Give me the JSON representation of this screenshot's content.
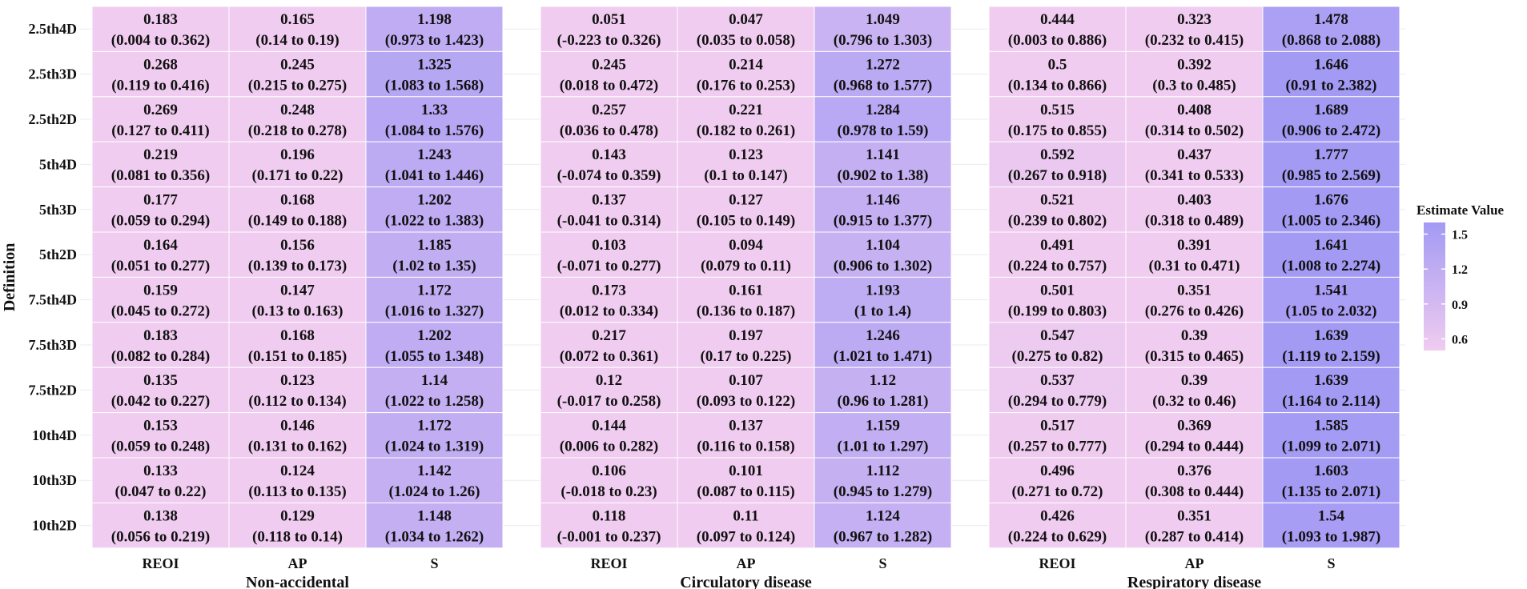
{
  "chart_data": {
    "type": "heatmap",
    "ylabel": "Definition",
    "rows": [
      "2.5th4D",
      "2.5th3D",
      "2.5th2D",
      "5th4D",
      "5th3D",
      "5th2D",
      "7.5th4D",
      "7.5th3D",
      "7.5th2D",
      "10th4D",
      "10th3D",
      "10th2D"
    ],
    "columns": [
      "REOI",
      "AP",
      "S"
    ],
    "legend": {
      "title": "Estimate Value",
      "ticks": [
        "1.5",
        "1.2",
        "0.9",
        "0.6"
      ],
      "tick_values": [
        1.5,
        1.2,
        0.9,
        0.6
      ],
      "range": [
        0.5,
        1.6
      ],
      "low_color": "#f0ccf0",
      "high_color": "#a39af4"
    },
    "panels": [
      {
        "title": "Non-accidental",
        "estimates": [
          [
            0.183,
            0.165,
            1.198
          ],
          [
            0.268,
            0.245,
            1.325
          ],
          [
            0.269,
            0.248,
            1.33
          ],
          [
            0.219,
            0.196,
            1.243
          ],
          [
            0.177,
            0.168,
            1.202
          ],
          [
            0.164,
            0.156,
            1.185
          ],
          [
            0.159,
            0.147,
            1.172
          ],
          [
            0.183,
            0.168,
            1.202
          ],
          [
            0.135,
            0.123,
            1.14
          ],
          [
            0.153,
            0.146,
            1.172
          ],
          [
            0.133,
            0.124,
            1.142
          ],
          [
            0.138,
            0.129,
            1.148
          ]
        ],
        "labels": [
          [
            "0.183",
            "0.165",
            "1.198"
          ],
          [
            "0.268",
            "0.245",
            "1.325"
          ],
          [
            "0.269",
            "0.248",
            "1.33"
          ],
          [
            "0.219",
            "0.196",
            "1.243"
          ],
          [
            "0.177",
            "0.168",
            "1.202"
          ],
          [
            "0.164",
            "0.156",
            "1.185"
          ],
          [
            "0.159",
            "0.147",
            "1.172"
          ],
          [
            "0.183",
            "0.168",
            "1.202"
          ],
          [
            "0.135",
            "0.123",
            "1.14"
          ],
          [
            "0.153",
            "0.146",
            "1.172"
          ],
          [
            "0.133",
            "0.124",
            "1.142"
          ],
          [
            "0.138",
            "0.129",
            "1.148"
          ]
        ],
        "ci": [
          [
            "(0.004 to 0.362)",
            "(0.14 to 0.19)",
            "(0.973 to 1.423)"
          ],
          [
            "(0.119 to 0.416)",
            "(0.215 to 0.275)",
            "(1.083 to 1.568)"
          ],
          [
            "(0.127 to 0.411)",
            "(0.218 to 0.278)",
            "(1.084 to 1.576)"
          ],
          [
            "(0.081 to 0.356)",
            "(0.171 to 0.22)",
            "(1.041 to 1.446)"
          ],
          [
            "(0.059 to 0.294)",
            "(0.149 to 0.188)",
            "(1.022 to 1.383)"
          ],
          [
            "(0.051 to 0.277)",
            "(0.139 to 0.173)",
            "(1.02 to 1.35)"
          ],
          [
            "(0.045 to 0.272)",
            "(0.13 to 0.163)",
            "(1.016 to 1.327)"
          ],
          [
            "(0.082 to 0.284)",
            "(0.151 to 0.185)",
            "(1.055 to 1.348)"
          ],
          [
            "(0.042 to 0.227)",
            "(0.112 to 0.134)",
            "(1.022 to 1.258)"
          ],
          [
            "(0.059 to 0.248)",
            "(0.131 to 0.162)",
            "(1.024 to 1.319)"
          ],
          [
            "(0.047 to 0.22)",
            "(0.113 to 0.135)",
            "(1.024 to 1.26)"
          ],
          [
            "(0.056 to 0.219)",
            "(0.118 to 0.14)",
            "(1.034 to 1.262)"
          ]
        ]
      },
      {
        "title": "Circulatory disease",
        "estimates": [
          [
            0.051,
            0.047,
            1.049
          ],
          [
            0.245,
            0.214,
            1.272
          ],
          [
            0.257,
            0.221,
            1.284
          ],
          [
            0.143,
            0.123,
            1.141
          ],
          [
            0.137,
            0.127,
            1.146
          ],
          [
            0.103,
            0.094,
            1.104
          ],
          [
            0.173,
            0.161,
            1.193
          ],
          [
            0.217,
            0.197,
            1.246
          ],
          [
            0.12,
            0.107,
            1.12
          ],
          [
            0.144,
            0.137,
            1.159
          ],
          [
            0.106,
            0.101,
            1.112
          ],
          [
            0.118,
            0.11,
            1.124
          ]
        ],
        "labels": [
          [
            "0.051",
            "0.047",
            "1.049"
          ],
          [
            "0.245",
            "0.214",
            "1.272"
          ],
          [
            "0.257",
            "0.221",
            "1.284"
          ],
          [
            "0.143",
            "0.123",
            "1.141"
          ],
          [
            "0.137",
            "0.127",
            "1.146"
          ],
          [
            "0.103",
            "0.094",
            "1.104"
          ],
          [
            "0.173",
            "0.161",
            "1.193"
          ],
          [
            "0.217",
            "0.197",
            "1.246"
          ],
          [
            "0.12",
            "0.107",
            "1.12"
          ],
          [
            "0.144",
            "0.137",
            "1.159"
          ],
          [
            "0.106",
            "0.101",
            "1.112"
          ],
          [
            "0.118",
            "0.11",
            "1.124"
          ]
        ],
        "ci": [
          [
            "(-0.223 to 0.326)",
            "(0.035 to 0.058)",
            "(0.796 to 1.303)"
          ],
          [
            "(0.018 to 0.472)",
            "(0.176 to 0.253)",
            "(0.968 to 1.577)"
          ],
          [
            "(0.036 to 0.478)",
            "(0.182 to 0.261)",
            "(0.978 to 1.59)"
          ],
          [
            "(-0.074 to 0.359)",
            "(0.1 to 0.147)",
            "(0.902 to 1.38)"
          ],
          [
            "(-0.041 to 0.314)",
            "(0.105 to 0.149)",
            "(0.915 to 1.377)"
          ],
          [
            "(-0.071 to 0.277)",
            "(0.079 to 0.11)",
            "(0.906 to 1.302)"
          ],
          [
            "(0.012 to 0.334)",
            "(0.136 to 0.187)",
            "(1 to 1.4)"
          ],
          [
            "(0.072 to 0.361)",
            "(0.17 to 0.225)",
            "(1.021 to 1.471)"
          ],
          [
            "(-0.017 to 0.258)",
            "(0.093 to 0.122)",
            "(0.96 to 1.281)"
          ],
          [
            "(0.006 to 0.282)",
            "(0.116 to 0.158)",
            "(1.01 to 1.297)"
          ],
          [
            "(-0.018 to 0.23)",
            "(0.087 to 0.115)",
            "(0.945 to 1.279)"
          ],
          [
            "(-0.001 to 0.237)",
            "(0.097 to 0.124)",
            "(0.967 to 1.282)"
          ]
        ]
      },
      {
        "title": "Respiratory disease",
        "estimates": [
          [
            0.444,
            0.323,
            1.478
          ],
          [
            0.5,
            0.392,
            1.646
          ],
          [
            0.515,
            0.408,
            1.689
          ],
          [
            0.592,
            0.437,
            1.777
          ],
          [
            0.521,
            0.403,
            1.676
          ],
          [
            0.491,
            0.391,
            1.641
          ],
          [
            0.501,
            0.351,
            1.541
          ],
          [
            0.547,
            0.39,
            1.639
          ],
          [
            0.537,
            0.39,
            1.639
          ],
          [
            0.517,
            0.369,
            1.585
          ],
          [
            0.496,
            0.376,
            1.603
          ],
          [
            0.426,
            0.351,
            1.54
          ]
        ],
        "labels": [
          [
            "0.444",
            "0.323",
            "1.478"
          ],
          [
            "0.5",
            "0.392",
            "1.646"
          ],
          [
            "0.515",
            "0.408",
            "1.689"
          ],
          [
            "0.592",
            "0.437",
            "1.777"
          ],
          [
            "0.521",
            "0.403",
            "1.676"
          ],
          [
            "0.491",
            "0.391",
            "1.641"
          ],
          [
            "0.501",
            "0.351",
            "1.541"
          ],
          [
            "0.547",
            "0.39",
            "1.639"
          ],
          [
            "0.537",
            "0.39",
            "1.639"
          ],
          [
            "0.517",
            "0.369",
            "1.585"
          ],
          [
            "0.496",
            "0.376",
            "1.603"
          ],
          [
            "0.426",
            "0.351",
            "1.54"
          ]
        ],
        "ci": [
          [
            "(0.003 to 0.886)",
            "(0.232 to 0.415)",
            "(0.868 to 2.088)"
          ],
          [
            "(0.134 to 0.866)",
            "(0.3 to 0.485)",
            "(0.91 to 2.382)"
          ],
          [
            "(0.175 to 0.855)",
            "(0.314 to 0.502)",
            "(0.906 to 2.472)"
          ],
          [
            "(0.267 to 0.918)",
            "(0.341 to 0.533)",
            "(0.985 to 2.569)"
          ],
          [
            "(0.239 to 0.802)",
            "(0.318 to 0.489)",
            "(1.005 to 2.346)"
          ],
          [
            "(0.224 to 0.757)",
            "(0.31 to 0.471)",
            "(1.008 to 2.274)"
          ],
          [
            "(0.199 to 0.803)",
            "(0.276 to 0.426)",
            "(1.05 to 2.032)"
          ],
          [
            "(0.275 to 0.82)",
            "(0.315 to 0.465)",
            "(1.119 to 2.159)"
          ],
          [
            "(0.294 to 0.779)",
            "(0.32 to 0.46)",
            "(1.164 to 2.114)"
          ],
          [
            "(0.257 to 0.777)",
            "(0.294 to 0.444)",
            "(1.099 to 2.071)"
          ],
          [
            "(0.271 to 0.72)",
            "(0.308 to 0.444)",
            "(1.135 to 2.071)"
          ],
          [
            "(0.224 to 0.629)",
            "(0.287 to 0.414)",
            "(1.093 to 1.987)"
          ]
        ]
      }
    ]
  }
}
